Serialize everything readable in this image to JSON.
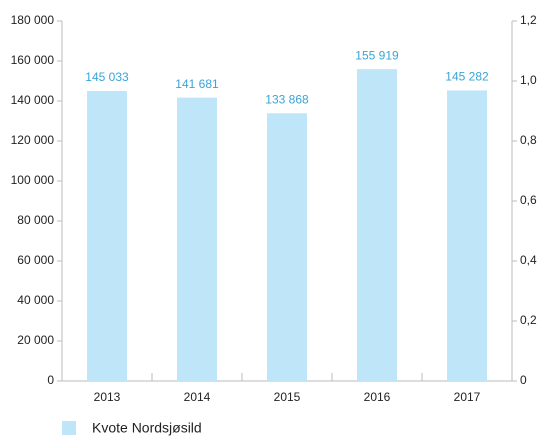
{
  "chart_data": {
    "type": "bar",
    "categories": [
      "2013",
      "2014",
      "2015",
      "2016",
      "2017"
    ],
    "series": [
      {
        "name": "Kvote Nordsjøsild",
        "color": "#bfe6f8",
        "values": [
          145033,
          141681,
          133868,
          155919,
          145282
        ],
        "value_labels": [
          "145 033",
          "141 681",
          "133 868",
          "155 919",
          "145 282"
        ]
      }
    ],
    "ylim": [
      0,
      180000
    ],
    "yticks": [
      0,
      {
        "value": 20000,
        "label": "20 000"
      },
      {
        "value": 40000,
        "label": "40 000"
      },
      {
        "value": 60000,
        "label": "60 000"
      },
      {
        "value": 80000,
        "label": "80 000"
      },
      {
        "value": 100000,
        "label": "100 000"
      },
      {
        "value": 120000,
        "label": "120 000"
      },
      {
        "value": 140000,
        "label": "140 000"
      },
      {
        "value": 160000,
        "label": "160 000"
      },
      {
        "value": 180000,
        "label": "180 000"
      }
    ],
    "y2lim": [
      0,
      1.2
    ],
    "y2ticks": [
      0,
      {
        "value": 0.2,
        "label": "0,2"
      },
      {
        "value": 0.4,
        "label": "0,4"
      },
      {
        "value": 0.6,
        "label": "0,6"
      },
      {
        "value": 0.8,
        "label": "0,8"
      },
      {
        "value": 1.0,
        "label": "1,0"
      },
      {
        "value": 1.2,
        "label": "1,2"
      }
    ],
    "grid": false
  }
}
